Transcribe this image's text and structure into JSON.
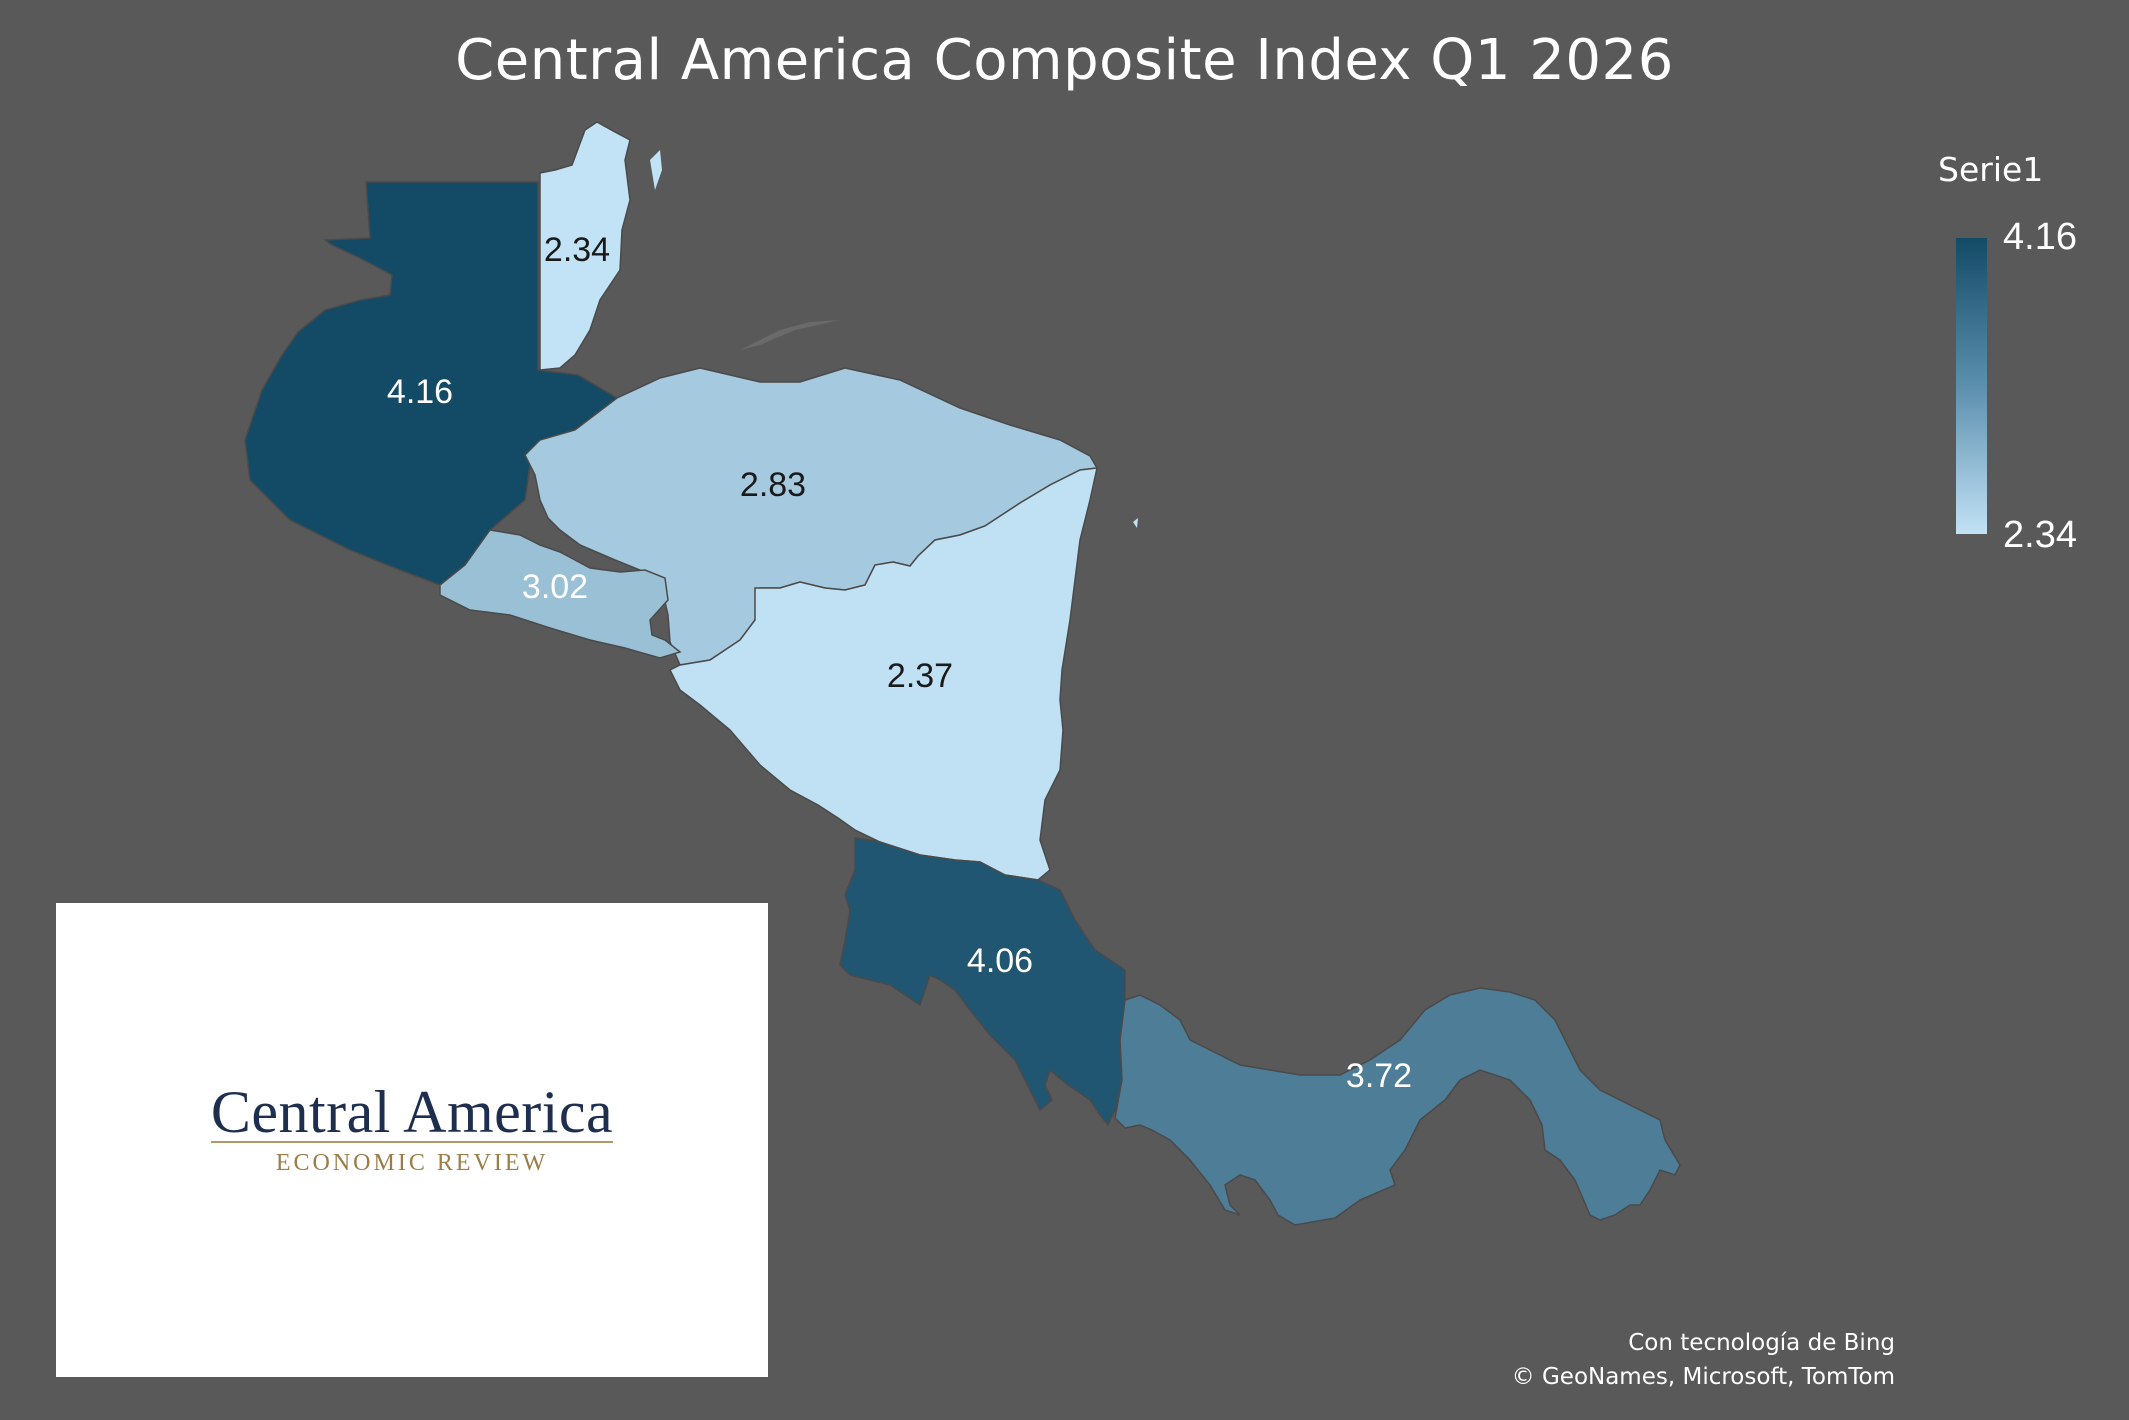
{
  "title": "Central America Composite Index Q1 2026",
  "legend": {
    "title": "Serie1",
    "max_label": "4.16",
    "min_label": "2.34",
    "color_max": "#134a66",
    "color_min": "#c2e2f5"
  },
  "chart_data": {
    "type": "choropleth",
    "title": "Central America Composite Index Q1 2026",
    "series_name": "Serie1",
    "value_range": [
      2.34,
      4.16
    ],
    "regions": [
      {
        "name": "Guatemala",
        "value": 4.16,
        "label": "4.16"
      },
      {
        "name": "Belize",
        "value": 2.34,
        "label": "2.34"
      },
      {
        "name": "Honduras",
        "value": 2.83,
        "label": "2.83"
      },
      {
        "name": "El Salvador",
        "value": 3.02,
        "label": "3.02"
      },
      {
        "name": "Nicaragua",
        "value": 2.37,
        "label": "2.37"
      },
      {
        "name": "Costa Rica",
        "value": 4.06,
        "label": "4.06"
      },
      {
        "name": "Panama",
        "value": 3.72,
        "label": "3.72"
      }
    ]
  },
  "attribution": {
    "line1": "Con tecnología de Bing",
    "line2": "© GeoNames, Microsoft, TomTom"
  },
  "logo": {
    "main": "Central America",
    "sub": "ECONOMIC REVIEW"
  }
}
